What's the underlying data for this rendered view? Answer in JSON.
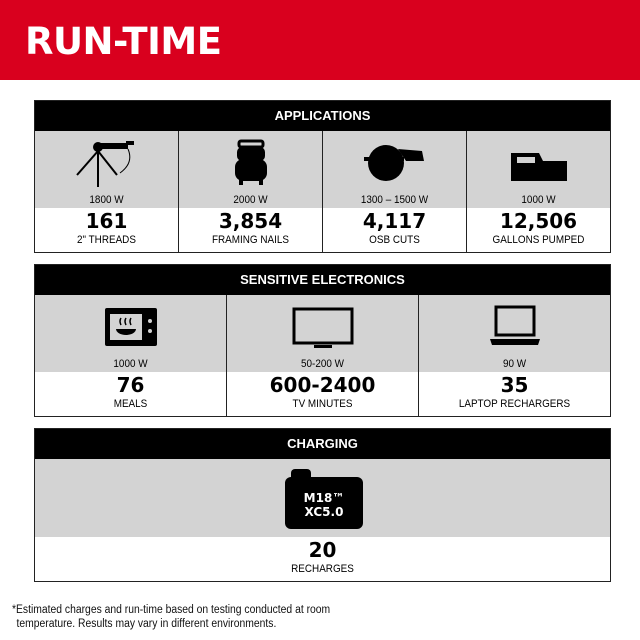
{
  "title": "RUN-TIME",
  "colors": {
    "brand_red": "#d9001e",
    "header_black": "#000000",
    "panel_gray": "#d3d3d3"
  },
  "applications": {
    "heading": "APPLICATIONS",
    "items": [
      {
        "icon": "pipe-threader-icon",
        "watts": "1800 W",
        "value": "161",
        "label": "2\" THREADS"
      },
      {
        "icon": "air-compressor-icon",
        "watts": "2000 W",
        "value": "3,854",
        "label": "FRAMING NAILS"
      },
      {
        "icon": "circular-saw-icon",
        "watts": "1300 – 1500 W",
        "value": "4,117",
        "label": "OSB CUTS"
      },
      {
        "icon": "water-pump-icon",
        "watts": "1000 W",
        "value": "12,506",
        "label": "GALLONS PUMPED"
      }
    ]
  },
  "electronics": {
    "heading": "SENSITIVE ELECTRONICS",
    "items": [
      {
        "icon": "microwave-icon",
        "watts": "1000 W",
        "value": "76",
        "label": "MEALS"
      },
      {
        "icon": "tv-icon",
        "watts": "50-200 W",
        "value": "600-2400",
        "label": "TV MINUTES"
      },
      {
        "icon": "laptop-icon",
        "watts": "90 W",
        "value": "35",
        "label": "LAPTOP RECHARGERS"
      }
    ]
  },
  "charging": {
    "heading": "CHARGING",
    "battery_line1": "M18™",
    "battery_line2": "XC5.0",
    "value": "20",
    "label": "RECHARGES"
  },
  "footnote": {
    "line1": "*Estimated charges and run-time based on testing conducted at room",
    "line2": "temperature. Results may vary in different environments."
  }
}
